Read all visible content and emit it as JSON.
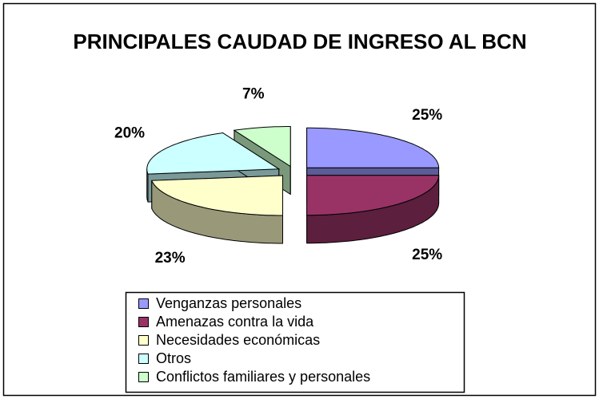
{
  "chart_data": {
    "type": "pie3d",
    "title": "PRINCIPALES CAUDAD DE INGRESO AL BCN",
    "categories": [
      "Venganzas personales",
      "Amenazas contra la vida",
      "Necesidades económicas",
      "Otros",
      "Conflictos familiares y personales"
    ],
    "values": [
      25,
      25,
      23,
      20,
      7
    ],
    "value_labels": [
      "25%",
      "25%",
      "23%",
      "20%",
      "7%"
    ],
    "colors": [
      "#9999ff",
      "#993366",
      "#ffffcc",
      "#ccffff",
      "#ccffcc"
    ],
    "legend": "bottom"
  }
}
